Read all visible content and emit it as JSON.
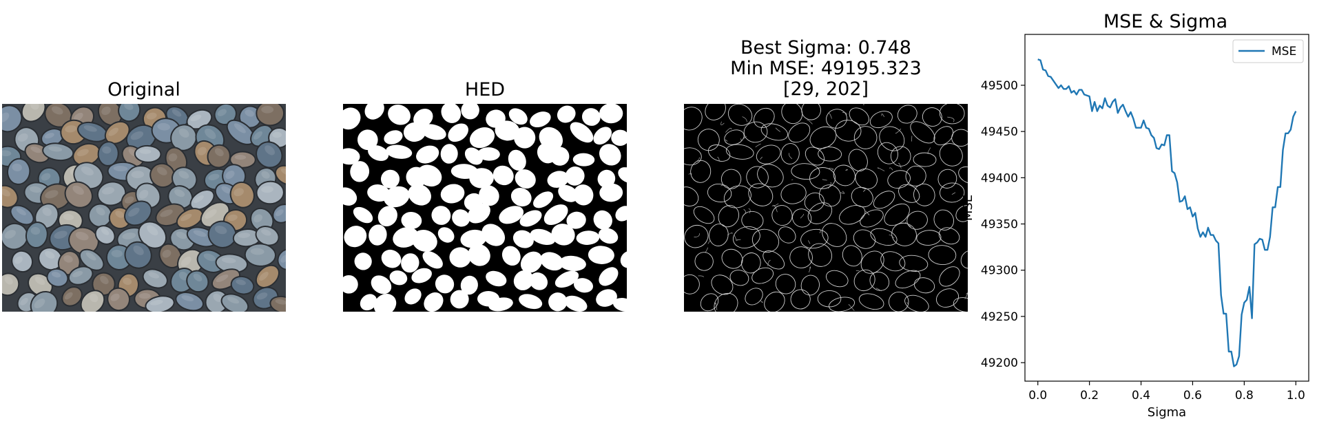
{
  "figure": {
    "panels": [
      {
        "title": "Original"
      },
      {
        "title": "HED"
      },
      {
        "title_lines": [
          "Best Sigma: 0.748",
          "Min MSE: 49195.323",
          "[29, 202]"
        ]
      }
    ]
  },
  "chart_data": {
    "type": "line",
    "title": "MSE & Sigma",
    "xlabel": "Sigma",
    "ylabel": "MSE",
    "xlim": [
      -0.05,
      1.05
    ],
    "ylim": [
      49180,
      49555
    ],
    "xticks": [
      0.0,
      0.2,
      0.4,
      0.6,
      0.8,
      1.0
    ],
    "xtick_labels": [
      "0.0",
      "0.2",
      "0.4",
      "0.6",
      "0.8",
      "1.0"
    ],
    "yticks": [
      49200,
      49250,
      49300,
      49350,
      49400,
      49450,
      49500
    ],
    "ytick_labels": [
      "49200",
      "49250",
      "49300",
      "49350",
      "49400",
      "49450",
      "49500"
    ],
    "grid": false,
    "legend": {
      "position": "top-right",
      "entries": [
        "MSE"
      ]
    },
    "series": [
      {
        "name": "MSE",
        "color": "#1f77b4",
        "x": [
          0.0,
          0.01,
          0.02,
          0.03,
          0.04,
          0.05,
          0.06,
          0.07,
          0.08,
          0.09,
          0.1,
          0.11,
          0.12,
          0.13,
          0.14,
          0.15,
          0.16,
          0.17,
          0.18,
          0.19,
          0.2,
          0.21,
          0.22,
          0.23,
          0.24,
          0.25,
          0.26,
          0.27,
          0.28,
          0.29,
          0.3,
          0.31,
          0.32,
          0.33,
          0.34,
          0.35,
          0.36,
          0.37,
          0.38,
          0.39,
          0.4,
          0.41,
          0.42,
          0.43,
          0.44,
          0.45,
          0.46,
          0.47,
          0.48,
          0.49,
          0.5,
          0.51,
          0.52,
          0.53,
          0.54,
          0.55,
          0.56,
          0.57,
          0.58,
          0.59,
          0.6,
          0.61,
          0.62,
          0.63,
          0.64,
          0.65,
          0.66,
          0.67,
          0.68,
          0.69,
          0.7,
          0.71,
          0.72,
          0.73,
          0.74,
          0.75,
          0.76,
          0.77,
          0.78,
          0.79,
          0.8,
          0.81,
          0.82,
          0.83,
          0.84,
          0.85,
          0.86,
          0.87,
          0.88,
          0.89,
          0.9,
          0.91,
          0.92,
          0.93,
          0.94,
          0.95,
          0.96,
          0.97,
          0.98,
          0.99,
          1.0
        ],
        "y": [
          49528,
          49527,
          49517,
          49516,
          49510,
          49509,
          49505,
          49501,
          49497,
          49500,
          49496,
          49496,
          49499,
          49492,
          49494,
          49490,
          49495,
          49495,
          49490,
          49489,
          49488,
          49472,
          49482,
          49472,
          49478,
          49475,
          49486,
          49478,
          49476,
          49482,
          49485,
          49470,
          49476,
          49479,
          49472,
          49466,
          49471,
          49464,
          49454,
          49454,
          49454,
          49462,
          49454,
          49453,
          49446,
          49443,
          49432,
          49431,
          49436,
          49435,
          49446,
          49446,
          49407,
          49405,
          49395,
          49374,
          49375,
          49380,
          49366,
          49368,
          49358,
          49362,
          49345,
          49336,
          49341,
          49336,
          49346,
          49338,
          49338,
          49332,
          49329,
          49273,
          49253,
          49253,
          49212,
          49212,
          49196,
          49198,
          49207,
          49252,
          49265,
          49268,
          49282,
          49248,
          49328,
          49330,
          49334,
          49333,
          49322,
          49322,
          49336,
          49368,
          49368,
          49390,
          49390,
          49430,
          49448,
          49448,
          49452,
          49466,
          49472
        ]
      }
    ]
  }
}
